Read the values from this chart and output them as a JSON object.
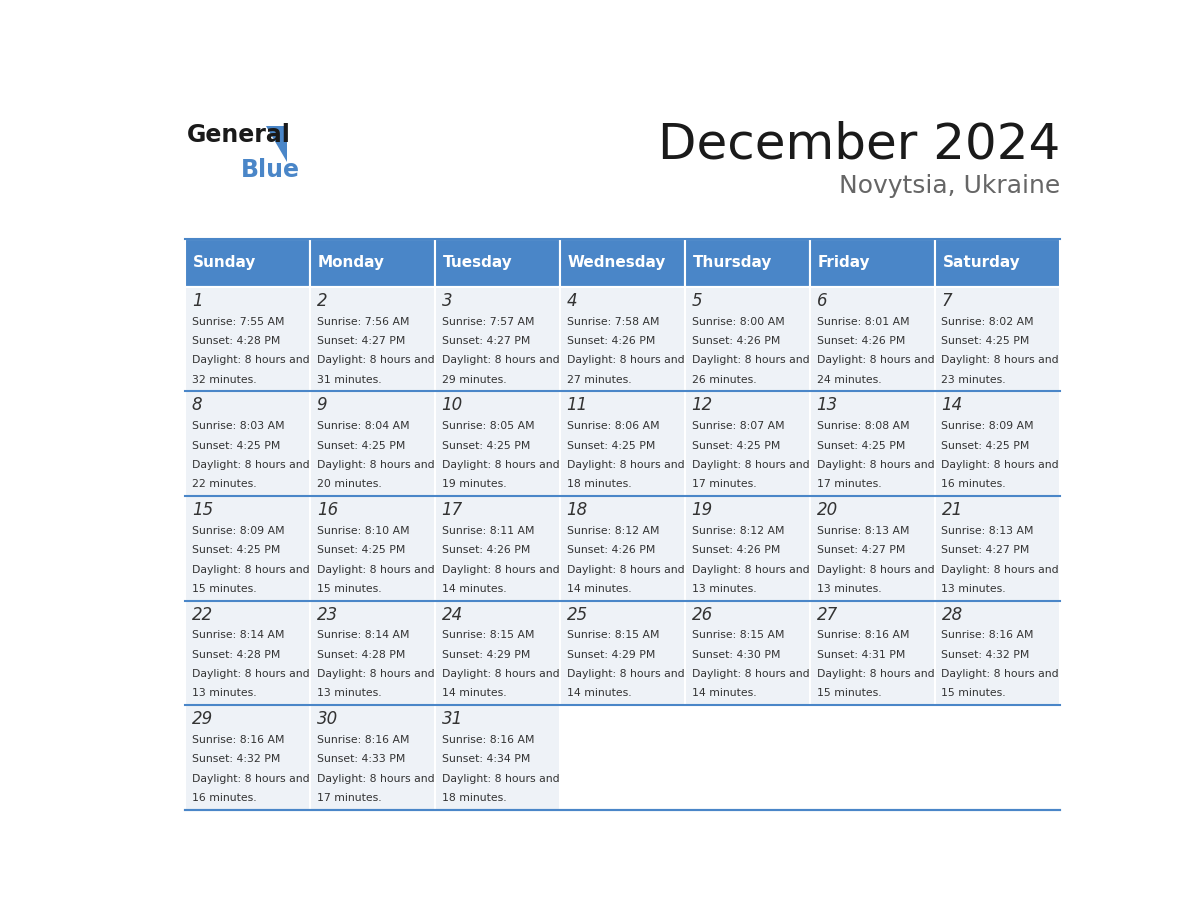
{
  "title": "December 2024",
  "subtitle": "Novytsia, Ukraine",
  "header_color": "#4a86c8",
  "header_text_color": "#ffffff",
  "day_names": [
    "Sunday",
    "Monday",
    "Tuesday",
    "Wednesday",
    "Thursday",
    "Friday",
    "Saturday"
  ],
  "cell_bg_color": "#eef2f7",
  "cell_border_color": "#ffffff",
  "day_num_color": "#333333",
  "text_color": "#333333",
  "days": [
    {
      "day": 1,
      "col": 0,
      "row": 0,
      "sunrise": "7:55 AM",
      "sunset": "4:28 PM",
      "daylight": "8 hours and 32 minutes."
    },
    {
      "day": 2,
      "col": 1,
      "row": 0,
      "sunrise": "7:56 AM",
      "sunset": "4:27 PM",
      "daylight": "8 hours and 31 minutes."
    },
    {
      "day": 3,
      "col": 2,
      "row": 0,
      "sunrise": "7:57 AM",
      "sunset": "4:27 PM",
      "daylight": "8 hours and 29 minutes."
    },
    {
      "day": 4,
      "col": 3,
      "row": 0,
      "sunrise": "7:58 AM",
      "sunset": "4:26 PM",
      "daylight": "8 hours and 27 minutes."
    },
    {
      "day": 5,
      "col": 4,
      "row": 0,
      "sunrise": "8:00 AM",
      "sunset": "4:26 PM",
      "daylight": "8 hours and 26 minutes."
    },
    {
      "day": 6,
      "col": 5,
      "row": 0,
      "sunrise": "8:01 AM",
      "sunset": "4:26 PM",
      "daylight": "8 hours and 24 minutes."
    },
    {
      "day": 7,
      "col": 6,
      "row": 0,
      "sunrise": "8:02 AM",
      "sunset": "4:25 PM",
      "daylight": "8 hours and 23 minutes."
    },
    {
      "day": 8,
      "col": 0,
      "row": 1,
      "sunrise": "8:03 AM",
      "sunset": "4:25 PM",
      "daylight": "8 hours and 22 minutes."
    },
    {
      "day": 9,
      "col": 1,
      "row": 1,
      "sunrise": "8:04 AM",
      "sunset": "4:25 PM",
      "daylight": "8 hours and 20 minutes."
    },
    {
      "day": 10,
      "col": 2,
      "row": 1,
      "sunrise": "8:05 AM",
      "sunset": "4:25 PM",
      "daylight": "8 hours and 19 minutes."
    },
    {
      "day": 11,
      "col": 3,
      "row": 1,
      "sunrise": "8:06 AM",
      "sunset": "4:25 PM",
      "daylight": "8 hours and 18 minutes."
    },
    {
      "day": 12,
      "col": 4,
      "row": 1,
      "sunrise": "8:07 AM",
      "sunset": "4:25 PM",
      "daylight": "8 hours and 17 minutes."
    },
    {
      "day": 13,
      "col": 5,
      "row": 1,
      "sunrise": "8:08 AM",
      "sunset": "4:25 PM",
      "daylight": "8 hours and 17 minutes."
    },
    {
      "day": 14,
      "col": 6,
      "row": 1,
      "sunrise": "8:09 AM",
      "sunset": "4:25 PM",
      "daylight": "8 hours and 16 minutes."
    },
    {
      "day": 15,
      "col": 0,
      "row": 2,
      "sunrise": "8:09 AM",
      "sunset": "4:25 PM",
      "daylight": "8 hours and 15 minutes."
    },
    {
      "day": 16,
      "col": 1,
      "row": 2,
      "sunrise": "8:10 AM",
      "sunset": "4:25 PM",
      "daylight": "8 hours and 15 minutes."
    },
    {
      "day": 17,
      "col": 2,
      "row": 2,
      "sunrise": "8:11 AM",
      "sunset": "4:26 PM",
      "daylight": "8 hours and 14 minutes."
    },
    {
      "day": 18,
      "col": 3,
      "row": 2,
      "sunrise": "8:12 AM",
      "sunset": "4:26 PM",
      "daylight": "8 hours and 14 minutes."
    },
    {
      "day": 19,
      "col": 4,
      "row": 2,
      "sunrise": "8:12 AM",
      "sunset": "4:26 PM",
      "daylight": "8 hours and 13 minutes."
    },
    {
      "day": 20,
      "col": 5,
      "row": 2,
      "sunrise": "8:13 AM",
      "sunset": "4:27 PM",
      "daylight": "8 hours and 13 minutes."
    },
    {
      "day": 21,
      "col": 6,
      "row": 2,
      "sunrise": "8:13 AM",
      "sunset": "4:27 PM",
      "daylight": "8 hours and 13 minutes."
    },
    {
      "day": 22,
      "col": 0,
      "row": 3,
      "sunrise": "8:14 AM",
      "sunset": "4:28 PM",
      "daylight": "8 hours and 13 minutes."
    },
    {
      "day": 23,
      "col": 1,
      "row": 3,
      "sunrise": "8:14 AM",
      "sunset": "4:28 PM",
      "daylight": "8 hours and 13 minutes."
    },
    {
      "day": 24,
      "col": 2,
      "row": 3,
      "sunrise": "8:15 AM",
      "sunset": "4:29 PM",
      "daylight": "8 hours and 14 minutes."
    },
    {
      "day": 25,
      "col": 3,
      "row": 3,
      "sunrise": "8:15 AM",
      "sunset": "4:29 PM",
      "daylight": "8 hours and 14 minutes."
    },
    {
      "day": 26,
      "col": 4,
      "row": 3,
      "sunrise": "8:15 AM",
      "sunset": "4:30 PM",
      "daylight": "8 hours and 14 minutes."
    },
    {
      "day": 27,
      "col": 5,
      "row": 3,
      "sunrise": "8:16 AM",
      "sunset": "4:31 PM",
      "daylight": "8 hours and 15 minutes."
    },
    {
      "day": 28,
      "col": 6,
      "row": 3,
      "sunrise": "8:16 AM",
      "sunset": "4:32 PM",
      "daylight": "8 hours and 15 minutes."
    },
    {
      "day": 29,
      "col": 0,
      "row": 4,
      "sunrise": "8:16 AM",
      "sunset": "4:32 PM",
      "daylight": "8 hours and 16 minutes."
    },
    {
      "day": 30,
      "col": 1,
      "row": 4,
      "sunrise": "8:16 AM",
      "sunset": "4:33 PM",
      "daylight": "8 hours and 17 minutes."
    },
    {
      "day": 31,
      "col": 2,
      "row": 4,
      "sunrise": "8:16 AM",
      "sunset": "4:34 PM",
      "daylight": "8 hours and 18 minutes."
    }
  ],
  "logo_text_general": "General",
  "logo_text_blue": "Blue",
  "logo_color_general": "#1a1a1a",
  "logo_color_blue": "#4a86c8",
  "logo_triangle_color": "#4a86c8",
  "title_fontsize": 36,
  "subtitle_fontsize": 18,
  "header_fontsize": 11,
  "day_num_fontsize": 12,
  "cell_text_fontsize": 7.8
}
